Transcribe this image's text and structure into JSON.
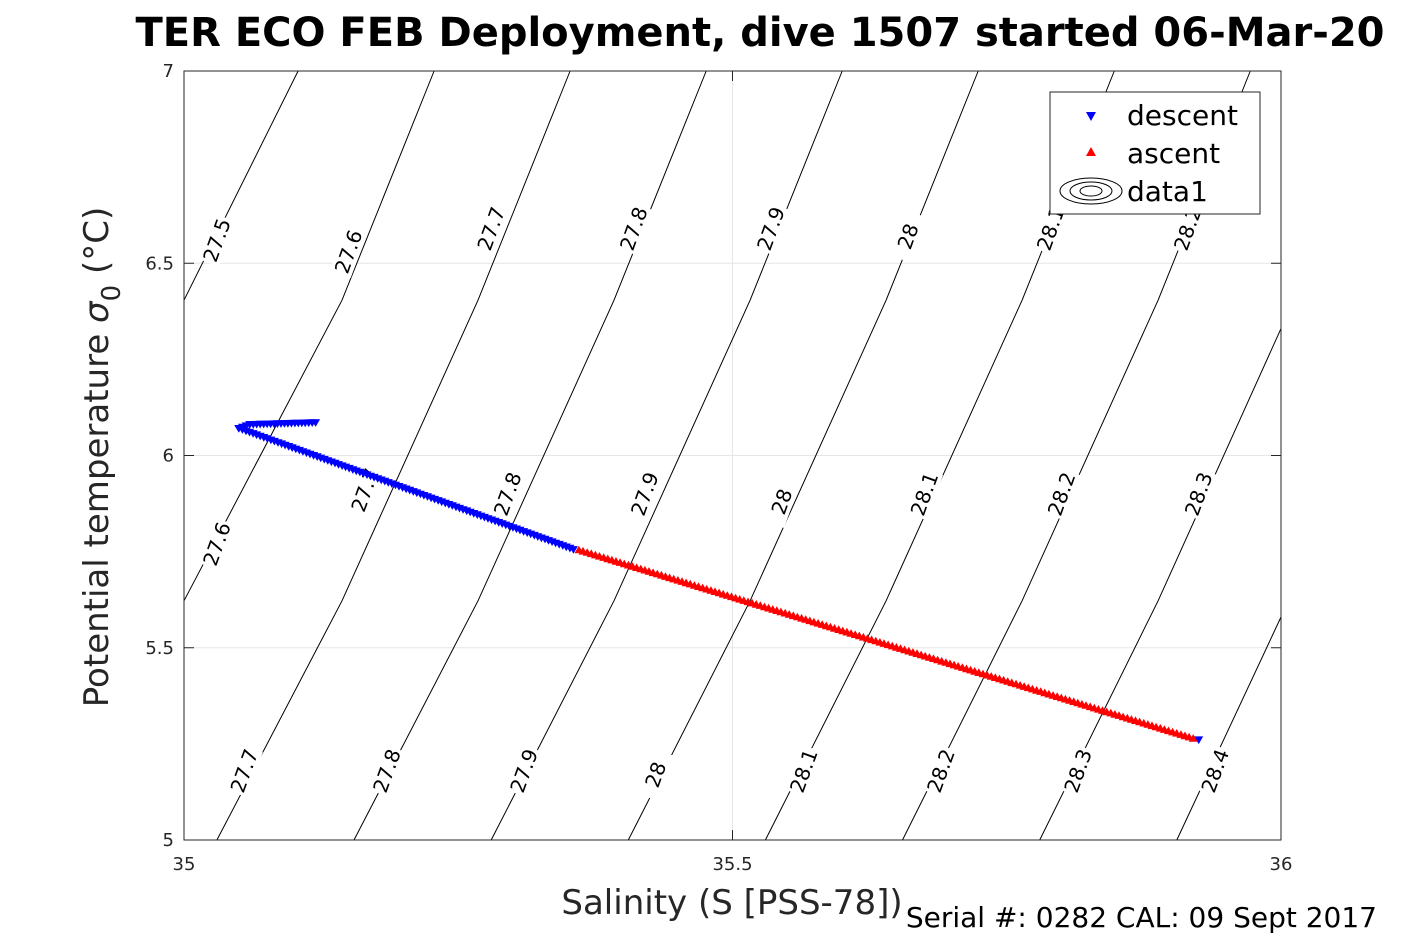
{
  "chart_data": {
    "type": "scatter",
    "title": "TER ECO FEB Deployment, dive 1507 started 06-Mar-20",
    "xlabel": "Salinity (S [PSS-78])",
    "ylabel_main": "Potential temperature ",
    "ylabel_sigma": "σ",
    "ylabel_sub": "0",
    "ylabel_unit": " (°C)",
    "xlim": [
      35,
      36
    ],
    "ylim": [
      5,
      7
    ],
    "xticks": [
      {
        "value": 35,
        "label": "35"
      },
      {
        "value": 35.5,
        "label": "35.5"
      },
      {
        "value": 36,
        "label": "36"
      }
    ],
    "yticks": [
      {
        "value": 5,
        "label": "5"
      },
      {
        "value": 5.5,
        "label": "5.5"
      },
      {
        "value": 6,
        "label": "6"
      },
      {
        "value": 6.5,
        "label": "6.5"
      },
      {
        "value": 7,
        "label": "7"
      }
    ],
    "grid": true,
    "legend_position": "top-right",
    "series": [
      {
        "name": "descent",
        "marker": "triangle-down",
        "color": "#0000ff",
        "segments": [
          {
            "x0": 35.12,
            "y0": 6.085,
            "x1": 35.06,
            "y1": 6.08,
            "n": 20
          },
          {
            "x0": 35.06,
            "y0": 6.08,
            "x1": 35.05,
            "y1": 6.07,
            "n": 4
          },
          {
            "x0": 35.05,
            "y0": 6.07,
            "x1": 35.355,
            "y1": 5.755,
            "n": 95
          }
        ],
        "extra_points": [
          {
            "x": 35.925,
            "y": 5.26
          }
        ]
      },
      {
        "name": "ascent",
        "marker": "triangle-up",
        "color": "#ff0000",
        "segments": [
          {
            "x0": 35.36,
            "y0": 5.755,
            "x1": 35.92,
            "y1": 5.265,
            "n": 150
          }
        ],
        "extra_points": []
      },
      {
        "name": "data1",
        "marker": "contour",
        "color": "#000000"
      }
    ],
    "contours": {
      "color": "#000000",
      "lines": [
        {
          "points": [
            [
              35.0,
              6.404
            ],
            [
              35.104,
              7.0
            ]
          ],
          "labels": [
            {
              "x": 35.03,
              "y": 6.56,
              "text": "27.5"
            }
          ]
        },
        {
          "points": [
            [
              35.0,
              5.622
            ],
            [
              35.144,
              6.404
            ],
            [
              35.228,
              7.0
            ]
          ],
          "labels": [
            {
              "x": 35.03,
              "y": 5.77,
              "text": "27.6"
            },
            {
              "x": 35.15,
              "y": 6.53,
              "text": "27.6"
            }
          ]
        },
        {
          "points": [
            [
              35.03,
              5.0
            ],
            [
              35.144,
              5.622
            ],
            [
              35.268,
              6.404
            ],
            [
              35.352,
              7.0
            ]
          ],
          "labels": [
            {
              "x": 35.055,
              "y": 5.18,
              "text": "27.7"
            },
            {
              "x": 35.165,
              "y": 5.91,
              "text": "27.7"
            },
            {
              "x": 35.28,
              "y": 6.59,
              "text": "27.7"
            }
          ]
        },
        {
          "points": [
            [
              35.155,
              5.0
            ],
            [
              35.268,
              5.622
            ],
            [
              35.392,
              6.404
            ],
            [
              35.476,
              7.0
            ]
          ],
          "labels": [
            {
              "x": 35.185,
              "y": 5.18,
              "text": "27.8"
            },
            {
              "x": 35.295,
              "y": 5.9,
              "text": "27.8"
            },
            {
              "x": 35.41,
              "y": 6.59,
              "text": "27.8"
            }
          ]
        },
        {
          "points": [
            [
              35.28,
              5.0
            ],
            [
              35.392,
              5.622
            ],
            [
              35.516,
              6.404
            ],
            [
              35.6,
              7.0
            ]
          ],
          "labels": [
            {
              "x": 35.31,
              "y": 5.18,
              "text": "27.9"
            },
            {
              "x": 35.42,
              "y": 5.9,
              "text": "27.9"
            },
            {
              "x": 35.535,
              "y": 6.59,
              "text": "27.9"
            }
          ]
        },
        {
          "points": [
            [
              35.405,
              5.0
            ],
            [
              35.516,
              5.622
            ],
            [
              35.64,
              6.404
            ],
            [
              35.724,
              7.0
            ]
          ],
          "labels": [
            {
              "x": 35.43,
              "y": 5.17,
              "text": "28"
            },
            {
              "x": 35.545,
              "y": 5.88,
              "text": "28"
            },
            {
              "x": 35.66,
              "y": 6.57,
              "text": "28"
            }
          ]
        },
        {
          "points": [
            [
              35.53,
              5.0
            ],
            [
              35.64,
              5.622
            ],
            [
              35.764,
              6.404
            ],
            [
              35.848,
              7.0
            ]
          ],
          "labels": [
            {
              "x": 35.565,
              "y": 5.18,
              "text": "28.1"
            },
            {
              "x": 35.675,
              "y": 5.9,
              "text": "28.1"
            },
            {
              "x": 35.79,
              "y": 6.59,
              "text": "28.1"
            }
          ]
        },
        {
          "points": [
            [
              35.655,
              5.0
            ],
            [
              35.764,
              5.622
            ],
            [
              35.888,
              6.404
            ],
            [
              35.972,
              7.0
            ]
          ],
          "labels": [
            {
              "x": 35.69,
              "y": 5.18,
              "text": "28.2"
            },
            {
              "x": 35.8,
              "y": 5.9,
              "text": "28.2"
            },
            {
              "x": 35.915,
              "y": 6.59,
              "text": "28.2"
            }
          ]
        },
        {
          "points": [
            [
              35.78,
              5.0
            ],
            [
              35.888,
              5.622
            ],
            [
              36.0,
              6.33
            ]
          ],
          "labels": [
            {
              "x": 35.815,
              "y": 5.18,
              "text": "28.3"
            },
            {
              "x": 35.925,
              "y": 5.9,
              "text": "28.3"
            }
          ]
        },
        {
          "points": [
            [
              35.905,
              5.0
            ],
            [
              36.0,
              5.58
            ]
          ],
          "labels": [
            {
              "x": 35.94,
              "y": 5.18,
              "text": "28.4"
            }
          ]
        }
      ]
    }
  },
  "footer": "Serial #: 0282  CAL: 09 Sept 2017"
}
